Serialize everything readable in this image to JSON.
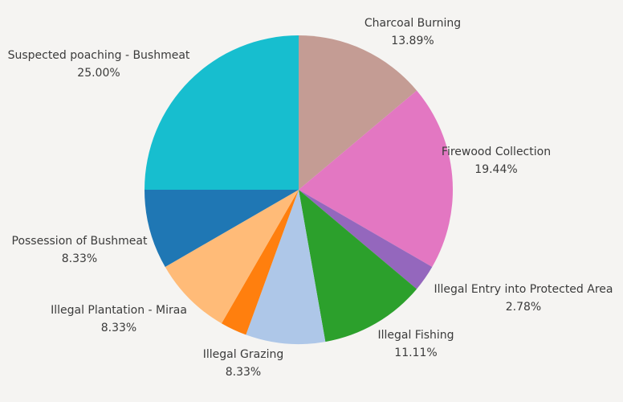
{
  "chart_data": {
    "type": "pie",
    "title": "",
    "slices": [
      {
        "label": "Charcoal Burning",
        "value": 13.89,
        "percent_label": "13.89%",
        "color": "#c49c94"
      },
      {
        "label": "Firewood Collection",
        "value": 19.44,
        "percent_label": "19.44%",
        "color": "#e377c2"
      },
      {
        "label": "Illegal Entry into Protected Area",
        "value": 2.78,
        "percent_label": "2.78%",
        "color": "#9467bd"
      },
      {
        "label": "Illegal Fishing",
        "value": 11.11,
        "percent_label": "11.11%",
        "color": "#2ca02c"
      },
      {
        "label": "Illegal Grazing",
        "value": 8.33,
        "percent_label": "8.33%",
        "color": "#aec7e8"
      },
      {
        "label": "",
        "value": 2.78,
        "percent_label": "",
        "color": "#ff7f0e"
      },
      {
        "label": "Illegal Plantation - Miraa",
        "value": 8.33,
        "percent_label": "8.33%",
        "color": "#ffbb78"
      },
      {
        "label": "Possession of Bushmeat",
        "value": 8.33,
        "percent_label": "8.33%",
        "color": "#1f77b4"
      },
      {
        "label": "Suspected poaching - Bushmeat",
        "value": 25.0,
        "percent_label": "25.00%",
        "color": "#17becf"
      }
    ],
    "start_angle": "12 o'clock",
    "direction": "clockwise",
    "legend": "none"
  }
}
